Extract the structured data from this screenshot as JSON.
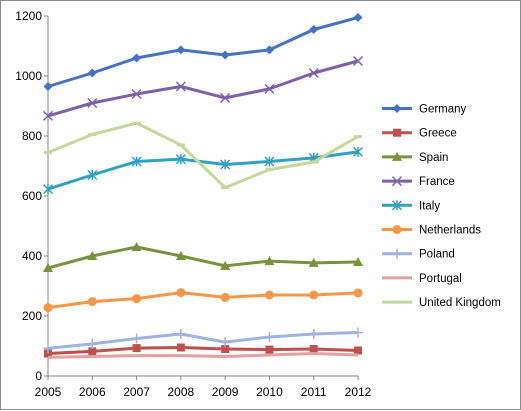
{
  "chart_data": {
    "type": "line",
    "title": "",
    "xlabel": "",
    "ylabel": "",
    "x": [
      "2005",
      "2006",
      "2007",
      "2008",
      "2009",
      "2010",
      "2011",
      "2012"
    ],
    "ylim": [
      0,
      1200
    ],
    "yticks": [
      0,
      200,
      400,
      600,
      800,
      1000,
      1200
    ],
    "y_tick_labels": [
      "0",
      "200",
      "400",
      "600",
      "800",
      "1000",
      "1200"
    ],
    "grid": false,
    "legend_position": "right",
    "series": [
      {
        "name": "Germany",
        "color": "#4572c4",
        "marker": "diamond",
        "values": [
          965,
          1010,
          1060,
          1087,
          1070,
          1087,
          1155,
          1195
        ]
      },
      {
        "name": "Greece",
        "color": "#c0504d",
        "marker": "square",
        "values": [
          75,
          82,
          93,
          95,
          90,
          88,
          90,
          85
        ]
      },
      {
        "name": "Spain",
        "color": "#77933c",
        "marker": "triangle",
        "values": [
          360,
          400,
          430,
          400,
          367,
          383,
          377,
          380
        ]
      },
      {
        "name": "France",
        "color": "#7f5fa8",
        "marker": "x",
        "values": [
          867,
          910,
          940,
          965,
          927,
          957,
          1010,
          1050
        ]
      },
      {
        "name": "Italy",
        "color": "#31a0c2",
        "marker": "star",
        "values": [
          623,
          670,
          715,
          723,
          705,
          715,
          727,
          747
        ]
      },
      {
        "name": "Netherlands",
        "color": "#f79646",
        "marker": "circle",
        "values": [
          228,
          248,
          258,
          278,
          262,
          270,
          270,
          277
        ]
      },
      {
        "name": "Poland",
        "color": "#9db3e2",
        "marker": "plus",
        "values": [
          92,
          107,
          125,
          140,
          113,
          130,
          140,
          145
        ]
      },
      {
        "name": "Portugal",
        "color": "#e6a0a0",
        "marker": "none",
        "values": [
          62,
          65,
          68,
          68,
          65,
          70,
          75,
          70
        ]
      },
      {
        "name": "United Kingdom",
        "color": "#c3d89b",
        "marker": "dash",
        "values": [
          745,
          805,
          843,
          770,
          628,
          688,
          713,
          798
        ]
      }
    ]
  }
}
